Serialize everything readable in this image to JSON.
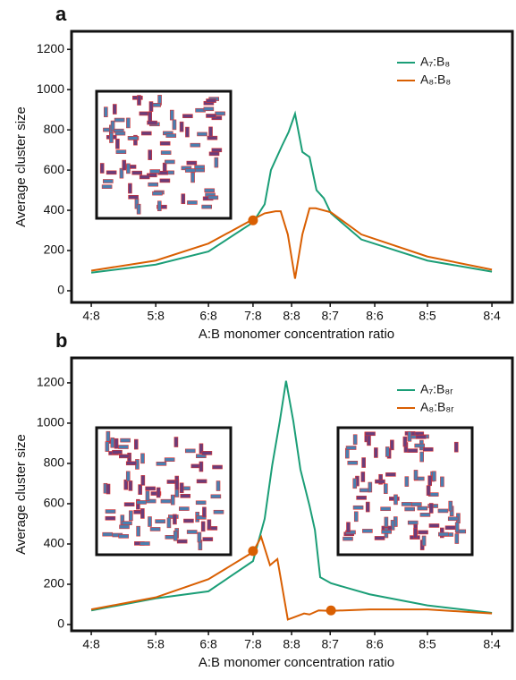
{
  "chart_data": [
    {
      "type": "line",
      "label": "a",
      "xlabel": "A:B monomer concentration ratio",
      "ylabel": "Average cluster size",
      "xscale": "log",
      "xlim": [
        0.467,
        2.147
      ],
      "ylim": [
        -58,
        1290
      ],
      "xticks": [
        {
          "value": 0.5,
          "label": "4:8"
        },
        {
          "value": 0.625,
          "label": "5:8"
        },
        {
          "value": 0.75,
          "label": "6:8"
        },
        {
          "value": 0.875,
          "label": "7:8"
        },
        {
          "value": 1,
          "label": "8:8"
        },
        {
          "value": 1.142857,
          "label": "8:7"
        },
        {
          "value": 1.333333,
          "label": "8:6"
        },
        {
          "value": 1.6,
          "label": "8:5"
        },
        {
          "value": 2,
          "label": "8:4"
        }
      ],
      "yticks": [
        0,
        200,
        400,
        600,
        800,
        1000,
        1200
      ],
      "legend": "upper right",
      "series": [
        {
          "name": "A₇:B₈",
          "color": "#1b9e77",
          "x": [
            0.5,
            0.625,
            0.75,
            0.875,
            0.911,
            0.931,
            0.967,
            0.99,
            1.012,
            1.038,
            1.064,
            1.09,
            1.118,
            1.146,
            1.273,
            1.6,
            2.0
          ],
          "values": [
            90,
            130,
            195,
            340,
            430,
            600,
            720,
            790,
            880,
            690,
            665,
            500,
            460,
            385,
            255,
            150,
            95
          ]
        },
        {
          "name": "A₈:B₈",
          "color": "#d95f02",
          "x": [
            0.5,
            0.625,
            0.75,
            0.875,
            0.911,
            0.946,
            0.963,
            0.987,
            1.012,
            1.038,
            1.064,
            1.087,
            1.146,
            1.273,
            1.6,
            2.0
          ],
          "values": [
            100,
            150,
            235,
            355,
            385,
            395,
            395,
            280,
            60,
            280,
            410,
            410,
            390,
            280,
            170,
            105
          ],
          "highlight_points": [
            {
              "x": 0.875,
              "y": 350
            }
          ]
        }
      ]
    },
    {
      "type": "line",
      "label": "b",
      "xlabel": "A:B monomer concentration ratio",
      "ylabel": "Average cluster size",
      "xscale": "log",
      "xlim": [
        0.467,
        2.147
      ],
      "ylim": [
        -31,
        1324
      ],
      "xticks": [
        {
          "value": 0.5,
          "label": "4:8"
        },
        {
          "value": 0.625,
          "label": "5:8"
        },
        {
          "value": 0.75,
          "label": "6:8"
        },
        {
          "value": 0.875,
          "label": "7:8"
        },
        {
          "value": 1,
          "label": "8:8"
        },
        {
          "value": 1.142857,
          "label": "8:7"
        },
        {
          "value": 1.333333,
          "label": "8:6"
        },
        {
          "value": 1.6,
          "label": "8:5"
        },
        {
          "value": 2,
          "label": "8:4"
        }
      ],
      "yticks": [
        0,
        200,
        400,
        600,
        800,
        1000,
        1200
      ],
      "legend": "upper right",
      "series": [
        {
          "name": "A₇:B₈ᵣ",
          "color": "#1b9e77",
          "x": [
            0.5,
            0.625,
            0.75,
            0.875,
            0.911,
            0.935,
            0.96,
            0.981,
            1.006,
            1.031,
            1.064,
            1.084,
            1.104,
            1.146,
            1.31,
            1.6,
            2.0
          ],
          "values": [
            70,
            130,
            165,
            315,
            525,
            790,
            1010,
            1210,
            1010,
            770,
            590,
            470,
            235,
            205,
            150,
            95,
            58
          ]
        },
        {
          "name": "A₈:B₈ᵣ",
          "color": "#d95f02",
          "x": [
            0.5,
            0.625,
            0.75,
            0.875,
            0.9,
            0.928,
            0.952,
            0.987,
            1.006,
            1.044,
            1.064,
            1.098,
            1.146,
            1.31,
            1.6,
            2.0
          ],
          "values": [
            75,
            135,
            225,
            360,
            435,
            295,
            325,
            25,
            35,
            55,
            50,
            70,
            68,
            75,
            75,
            55
          ],
          "highlight_points": [
            {
              "x": 0.875,
              "y": 365
            },
            {
              "x": 1.146,
              "y": 70
            }
          ]
        }
      ]
    }
  ]
}
